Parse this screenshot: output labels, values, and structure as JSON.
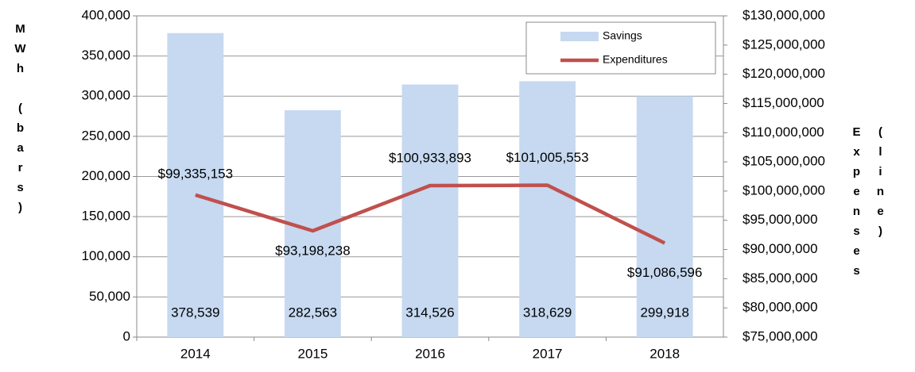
{
  "chart_data": {
    "type": "bar-line",
    "categories": [
      "2014",
      "2015",
      "2016",
      "2017",
      "2018"
    ],
    "series": [
      {
        "name": "Savings",
        "type": "bar",
        "color": "#c6d9f1",
        "axis": "y",
        "values": [
          378539,
          282563,
          314526,
          318629,
          299918
        ],
        "value_labels": [
          "378,539",
          "282,563",
          "314,526",
          "318,629",
          "299,918"
        ]
      },
      {
        "name": "Expenditures",
        "type": "line",
        "color": "#c0504d",
        "axis": "y2",
        "values": [
          99335153,
          93198238,
          100933893,
          101005553,
          91086596
        ],
        "value_labels": [
          "$99,335,153",
          "$93,198,238",
          "$100,933,893",
          "$101,005,553",
          "$91,086,596"
        ]
      }
    ],
    "ylabel": "MWh (bars)",
    "y2label": "Expenses (line)",
    "ylim": [
      0,
      400000
    ],
    "yticks": [
      0,
      {
        "value": 50000,
        "label": "50,000"
      },
      {
        "value": 100000,
        "label": "100,000"
      },
      {
        "value": 150000,
        "label": "150,000"
      },
      {
        "value": 200000,
        "label": "200,000"
      },
      {
        "value": 250000,
        "label": "250,000"
      },
      {
        "value": 300000,
        "label": "300,000"
      },
      {
        "value": 350000,
        "label": "350,000"
      },
      {
        "value": 400000,
        "label": "400,000"
      }
    ],
    "y2lim": [
      75000000,
      130000000
    ],
    "y2ticks": [
      {
        "value": 75000000,
        "label": "$75,000,000"
      },
      {
        "value": 80000000,
        "label": "$80,000,000"
      },
      {
        "value": 85000000,
        "label": "$85,000,000"
      },
      {
        "value": 90000000,
        "label": "$90,000,000"
      },
      {
        "value": 95000000,
        "label": "$95,000,000"
      },
      {
        "value": 100000000,
        "label": "$100,000,000"
      },
      {
        "value": 105000000,
        "label": "$105,000,000"
      },
      {
        "value": 110000000,
        "label": "$110,000,000"
      },
      {
        "value": 115000000,
        "label": "$115,000,000"
      },
      {
        "value": 120000000,
        "label": "$120,000,000"
      },
      {
        "value": 125000000,
        "label": "$125,000,000"
      },
      {
        "value": 130000000,
        "label": "$130,000,000"
      }
    ],
    "grid": true,
    "legend": "upper right"
  }
}
